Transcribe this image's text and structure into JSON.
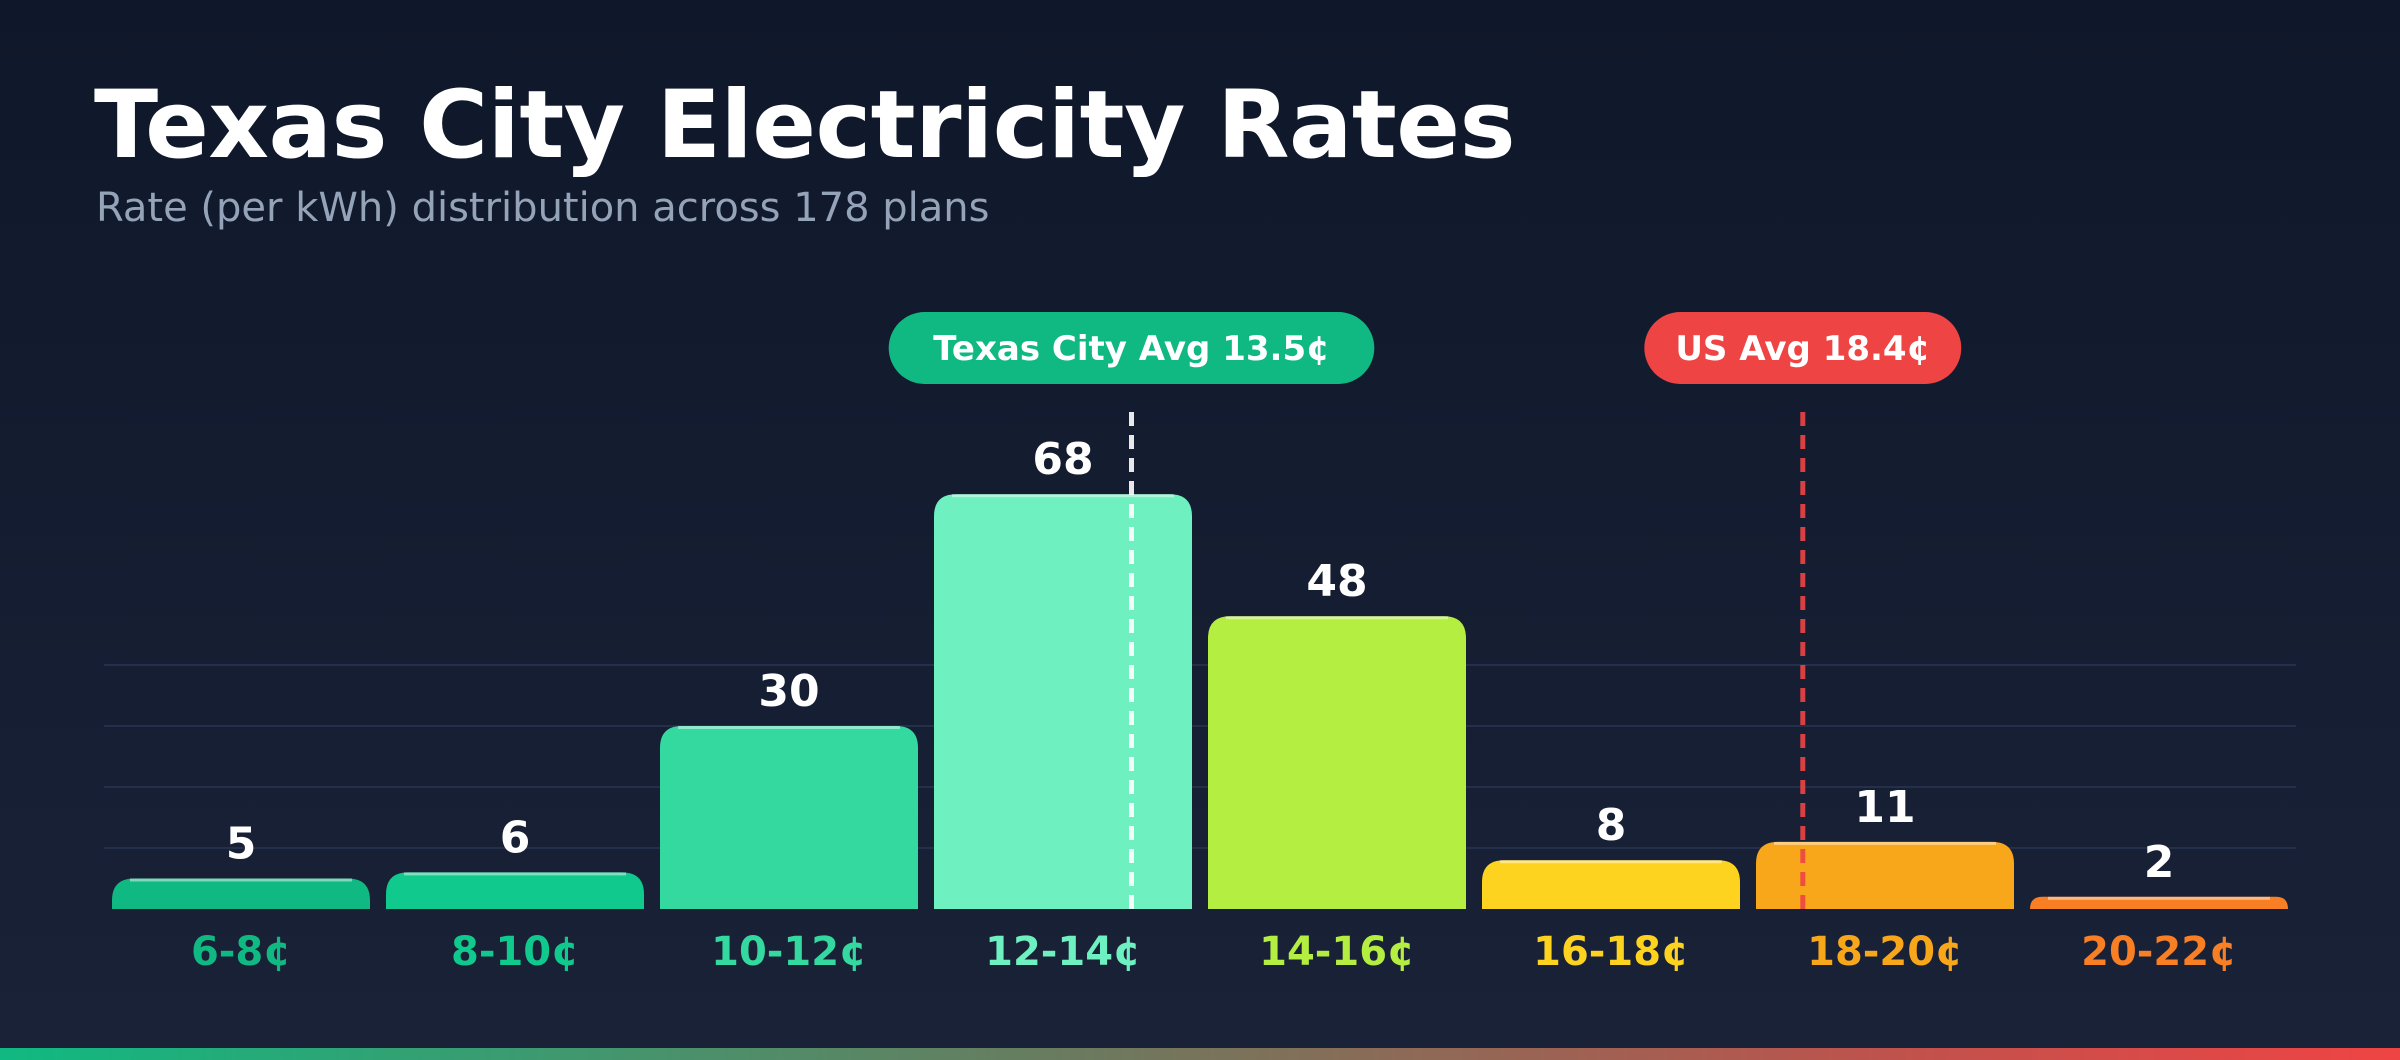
{
  "title": "Texas City Electricity Rates",
  "subtitle": "Rate (per kWh) distribution across 178 plans",
  "chart_data": {
    "type": "bar",
    "categories": [
      "6-8¢",
      "8-10¢",
      "10-12¢",
      "12-14¢",
      "14-16¢",
      "16-18¢",
      "18-20¢",
      "20-22¢"
    ],
    "values": [
      5,
      6,
      30,
      68,
      48,
      8,
      11,
      2
    ],
    "colors": [
      "#10b981",
      "#10c98d",
      "#34d9a0",
      "#6ef0c0",
      "#b4ee40",
      "#fdd31f",
      "#f9a71a",
      "#f97f24"
    ],
    "xlim": [
      6,
      22
    ],
    "ylim": [
      0,
      74
    ],
    "grid": true,
    "reference_lines": [
      {
        "label": "Texas City Avg 13.5¢",
        "value": 13.5,
        "color": "#ffffff",
        "badge_color": "#10b981"
      },
      {
        "label": "US Avg 18.4¢",
        "value": 18.4,
        "color": "#ef4444",
        "badge_color": "#ef4444"
      }
    ]
  }
}
